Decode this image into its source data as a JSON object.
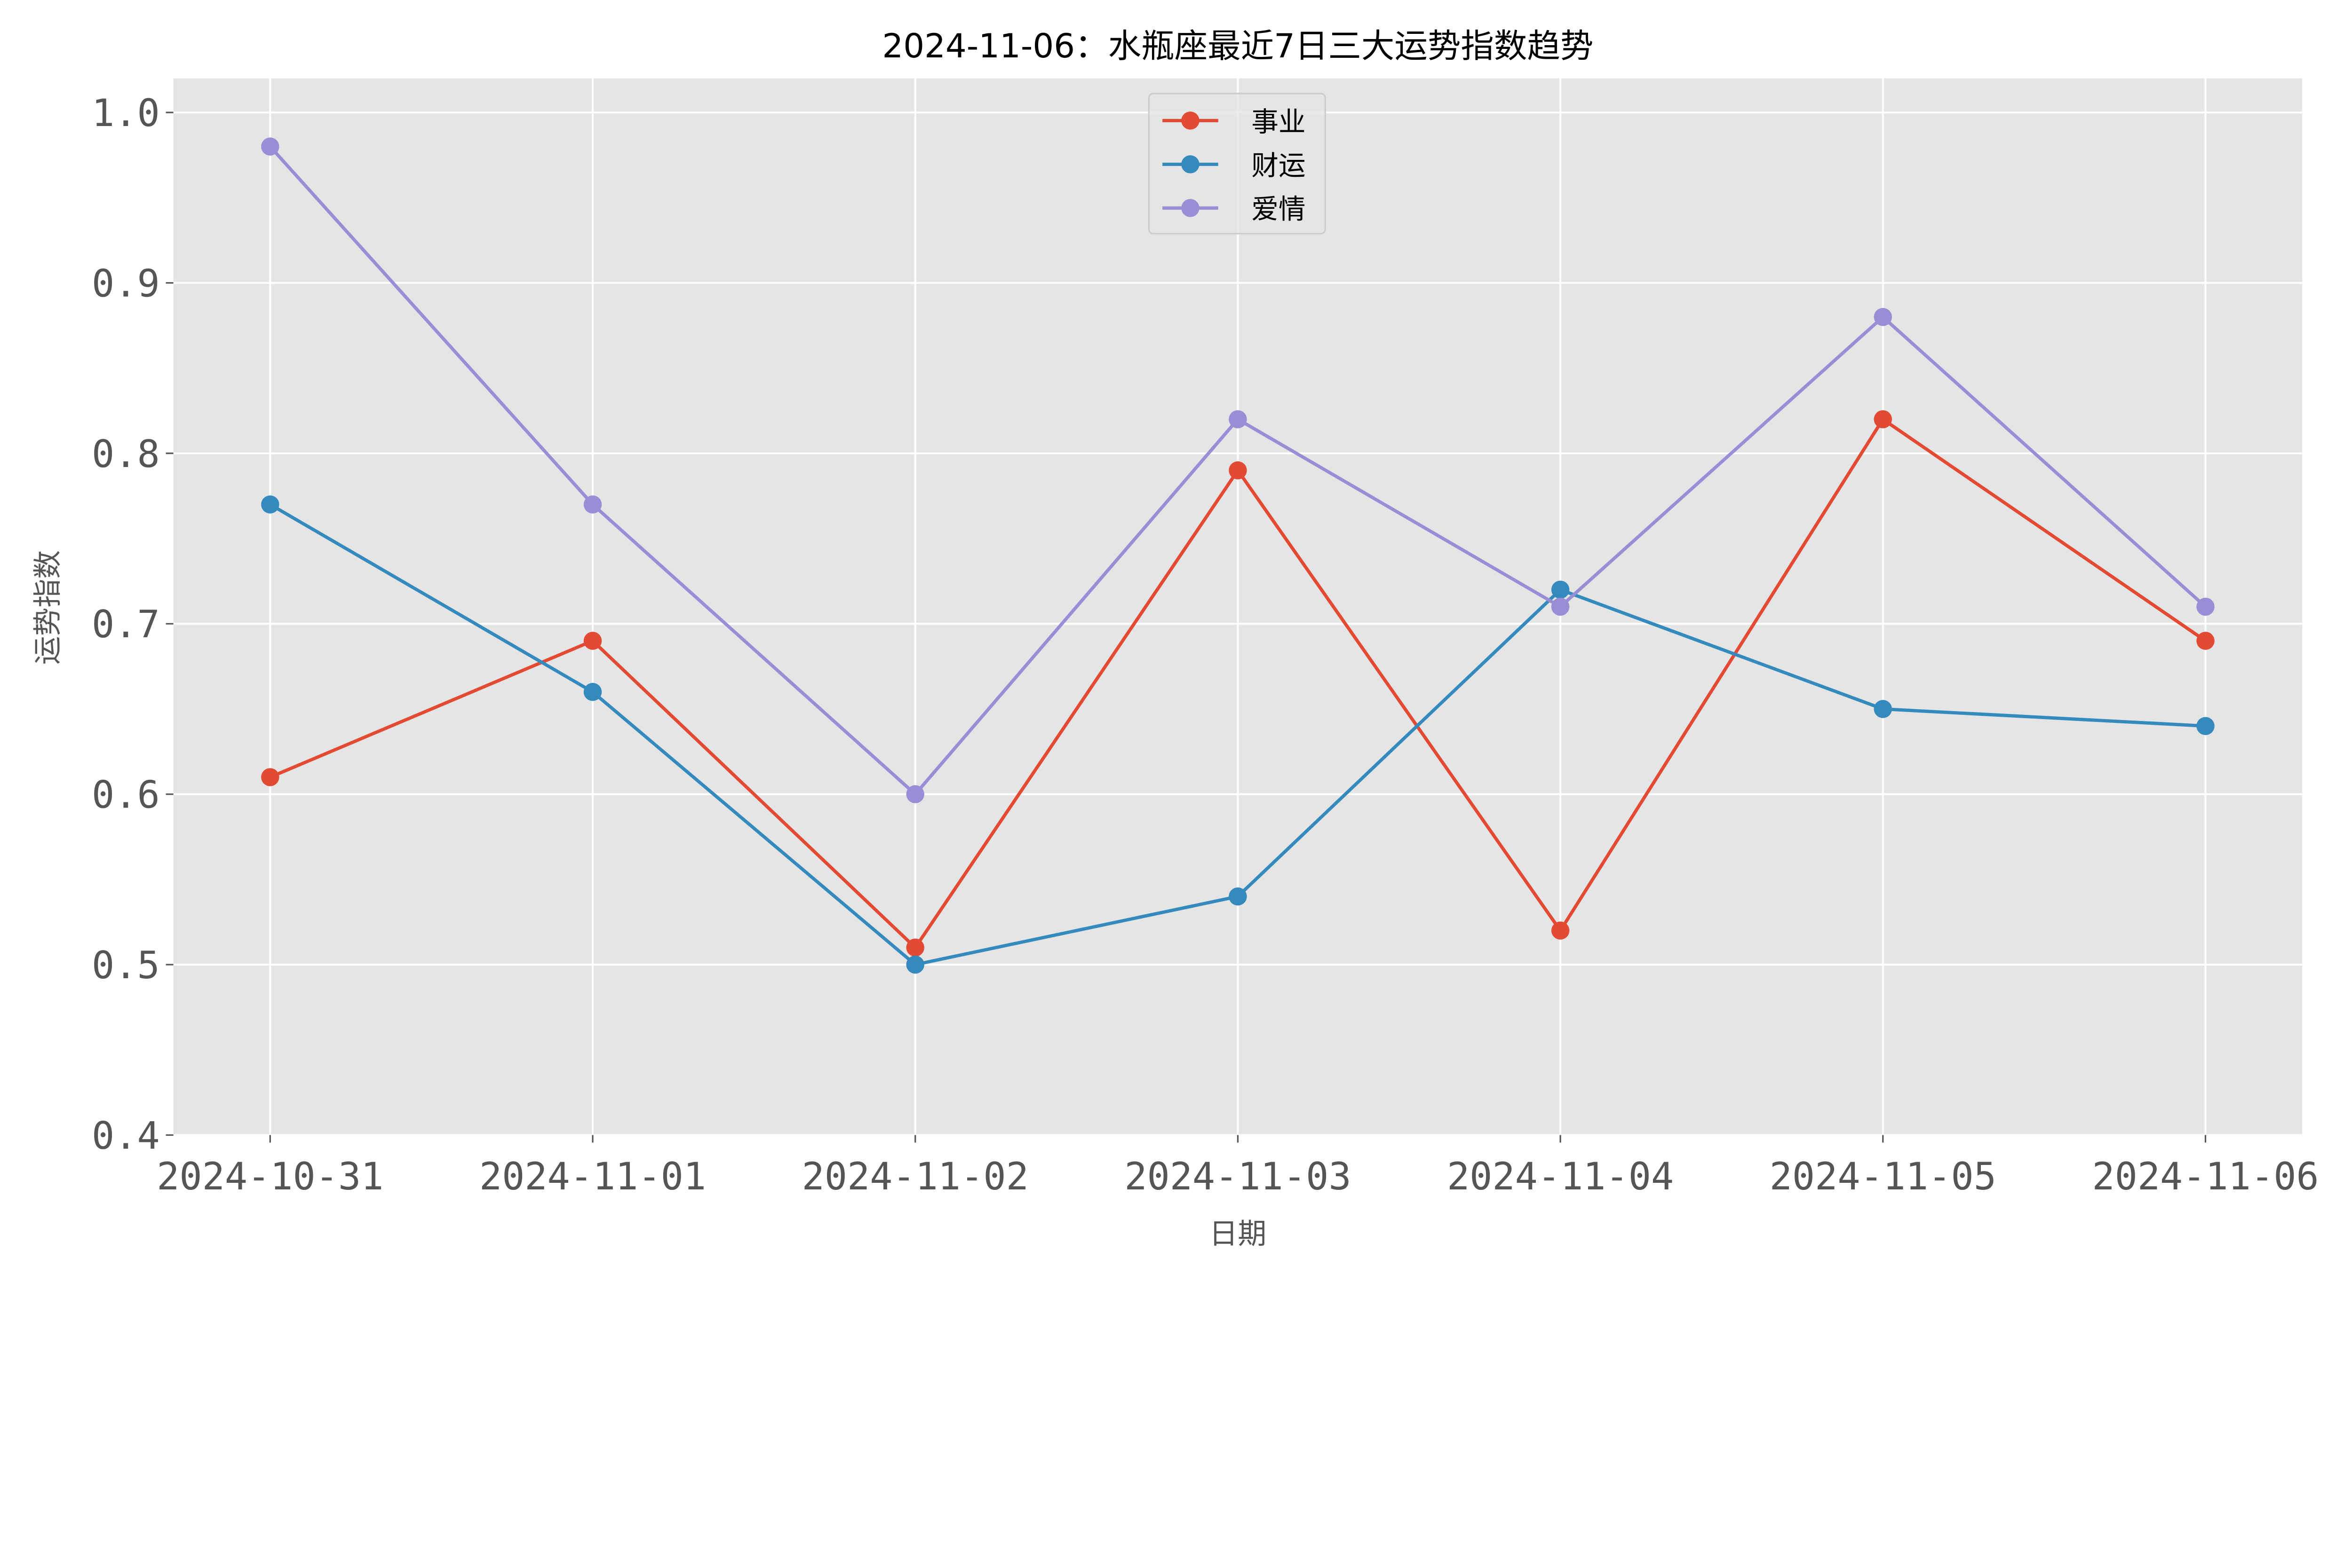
{
  "chart_data": {
    "type": "line",
    "title": "2024-11-06：水瓶座最近7日三大运势指数趋势",
    "xlabel": "日期",
    "ylabel": "运势指数",
    "categories": [
      "2024-10-31",
      "2024-11-01",
      "2024-11-02",
      "2024-11-03",
      "2024-11-04",
      "2024-11-05",
      "2024-11-06"
    ],
    "ylim": [
      0.4,
      1.02
    ],
    "yticks": [
      "0.4",
      "0.5",
      "0.6",
      "0.7",
      "0.8",
      "0.9",
      "1.0"
    ],
    "grid": true,
    "legend_position": "upper-center",
    "series": [
      {
        "name": "事业",
        "color": "#E24A33",
        "values": [
          0.61,
          0.69,
          0.51,
          0.79,
          0.52,
          0.82,
          0.69
        ]
      },
      {
        "name": "财运",
        "color": "#348ABD",
        "values": [
          0.77,
          0.66,
          0.5,
          0.54,
          0.72,
          0.65,
          0.64
        ]
      },
      {
        "name": "爱情",
        "color": "#988ED5",
        "values": [
          0.98,
          0.77,
          0.6,
          0.82,
          0.71,
          0.88,
          0.71
        ]
      }
    ]
  }
}
